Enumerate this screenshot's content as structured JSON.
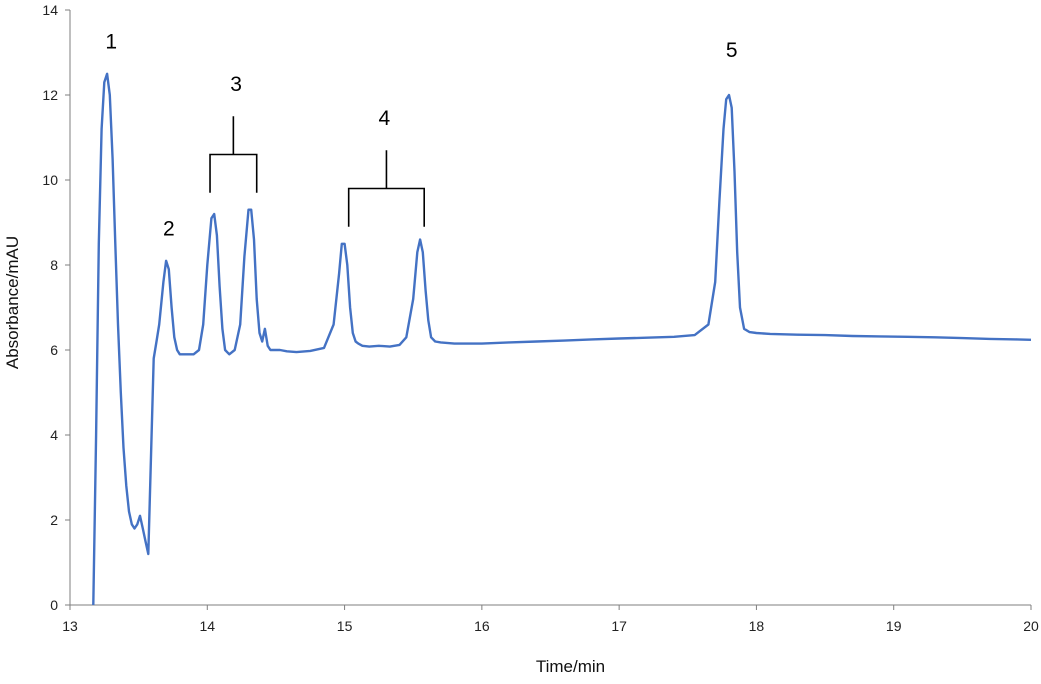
{
  "chart_data": {
    "type": "line",
    "title": "",
    "xlabel": "Time/min",
    "ylabel": "Absorbance/mAU",
    "xlim": [
      13,
      20
    ],
    "ylim": [
      0,
      14
    ],
    "xticks": [
      13,
      14,
      15,
      16,
      17,
      18,
      19,
      20
    ],
    "yticks": [
      0,
      2,
      4,
      6,
      8,
      10,
      12,
      14
    ],
    "grid": false,
    "legend": "none",
    "line_color": "#4472C4",
    "series": [
      {
        "x": [
          13.17,
          13.19,
          13.21,
          13.23,
          13.25,
          13.27,
          13.29,
          13.31,
          13.33,
          13.35,
          13.37,
          13.39,
          13.41,
          13.43,
          13.45,
          13.47,
          13.49,
          13.51,
          13.53,
          13.55,
          13.57,
          13.59,
          13.61,
          13.63,
          13.65,
          13.68,
          13.7,
          13.72,
          13.74,
          13.76,
          13.78,
          13.8,
          13.82,
          13.85,
          13.9,
          13.94,
          13.97,
          14.0,
          14.03,
          14.05,
          14.07,
          14.09,
          14.11,
          14.13,
          14.16,
          14.2,
          14.24,
          14.27,
          14.3,
          14.32,
          14.34,
          14.36,
          14.38,
          14.4,
          14.42,
          14.44,
          14.46,
          14.48,
          14.5,
          14.53,
          14.58,
          14.65,
          14.75,
          14.85,
          14.92,
          14.96,
          14.98,
          15.0,
          15.02,
          15.04,
          15.06,
          15.08,
          15.1,
          15.13,
          15.18,
          15.25,
          15.33,
          15.4,
          15.45,
          15.5,
          15.53,
          15.55,
          15.57,
          15.59,
          15.61,
          15.63,
          15.66,
          15.7,
          15.8,
          15.9,
          16.0,
          16.2,
          16.4,
          16.6,
          16.8,
          17.0,
          17.2,
          17.4,
          17.55,
          17.65,
          17.7,
          17.73,
          17.76,
          17.78,
          17.8,
          17.82,
          17.84,
          17.86,
          17.88,
          17.91,
          17.95,
          18.0,
          18.1,
          18.3,
          18.5,
          18.7,
          18.9,
          19.1,
          19.3,
          19.5,
          19.7,
          19.9,
          20.0
        ],
        "y": [
          0.0,
          4.0,
          8.5,
          11.2,
          12.3,
          12.5,
          12.0,
          10.5,
          8.5,
          6.6,
          5.0,
          3.7,
          2.8,
          2.2,
          1.9,
          1.8,
          1.9,
          2.1,
          1.8,
          1.5,
          1.2,
          3.5,
          5.8,
          6.2,
          6.6,
          7.6,
          8.1,
          7.9,
          7.0,
          6.3,
          6.0,
          5.9,
          5.9,
          5.9,
          5.9,
          6.0,
          6.6,
          8.0,
          9.1,
          9.2,
          8.7,
          7.5,
          6.5,
          6.0,
          5.9,
          6.0,
          6.6,
          8.2,
          9.3,
          9.3,
          8.6,
          7.2,
          6.4,
          6.2,
          6.5,
          6.1,
          6.0,
          6.0,
          6.0,
          6.0,
          5.97,
          5.95,
          5.98,
          6.05,
          6.6,
          7.8,
          8.5,
          8.5,
          8.0,
          7.0,
          6.4,
          6.2,
          6.15,
          6.1,
          6.08,
          6.1,
          6.08,
          6.12,
          6.3,
          7.2,
          8.3,
          8.6,
          8.3,
          7.4,
          6.7,
          6.3,
          6.2,
          6.18,
          6.15,
          6.15,
          6.15,
          6.18,
          6.2,
          6.22,
          6.25,
          6.27,
          6.29,
          6.31,
          6.35,
          6.6,
          7.6,
          9.5,
          11.2,
          11.9,
          12.0,
          11.7,
          10.2,
          8.3,
          7.0,
          6.5,
          6.42,
          6.4,
          6.38,
          6.36,
          6.35,
          6.33,
          6.32,
          6.31,
          6.3,
          6.28,
          6.26,
          6.25,
          6.24
        ]
      }
    ],
    "annotations": [
      {
        "text": "1",
        "x": 13.3,
        "y": 13.1
      },
      {
        "text": "2",
        "x": 13.72,
        "y": 8.7
      },
      {
        "text": "3",
        "x": 14.21,
        "y": 12.1,
        "bracket": {
          "x1": 14.02,
          "x2": 14.36,
          "y_bar": 10.6,
          "y_top": 11.5,
          "y_bottom": 9.7
        }
      },
      {
        "text": "4",
        "x": 15.29,
        "y": 11.3,
        "bracket": {
          "x1": 15.03,
          "x2": 15.58,
          "y_bar": 9.8,
          "y_top": 10.7,
          "y_bottom": 8.9
        }
      },
      {
        "text": "5",
        "x": 17.82,
        "y": 12.9
      }
    ]
  }
}
